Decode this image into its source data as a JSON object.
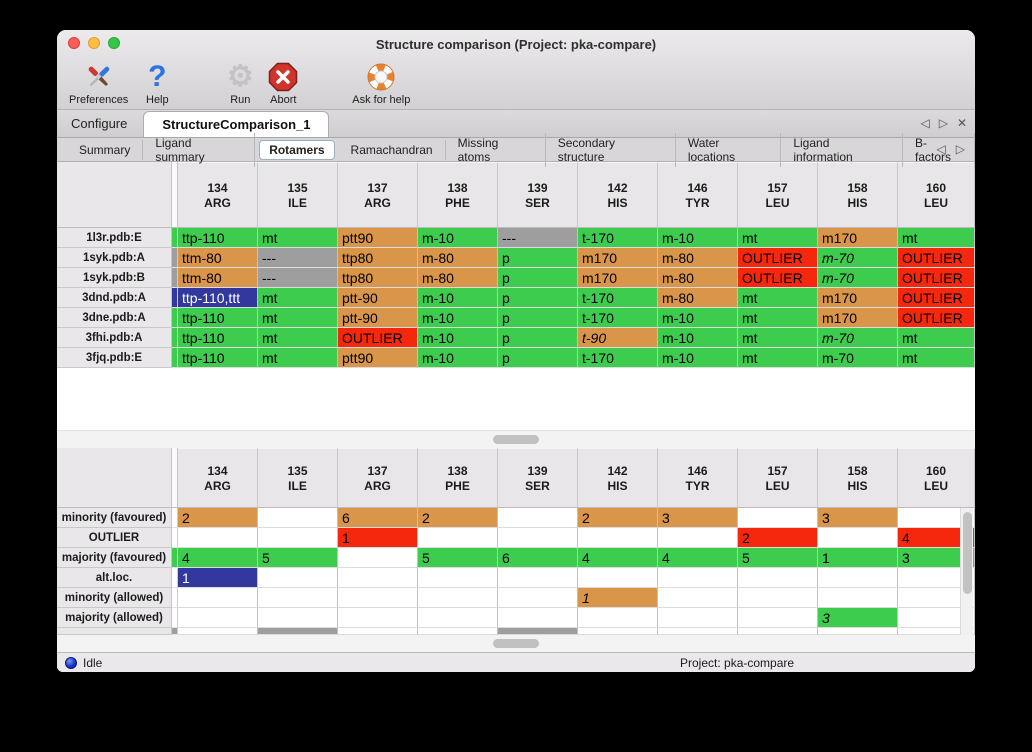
{
  "window": {
    "title": "Structure comparison (Project: pka-compare)"
  },
  "traffic_lights": [
    "close",
    "minimize",
    "zoom"
  ],
  "toolbar": {
    "items": [
      {
        "label": "Preferences",
        "icon": "preferences-tools-icon"
      },
      {
        "label": "Help",
        "icon": "help-question-icon"
      },
      {
        "label": "Run",
        "icon": "run-gear-icon",
        "disabled": true
      },
      {
        "label": "Abort",
        "icon": "abort-stop-icon"
      },
      {
        "label": "Ask for help",
        "icon": "lifebuoy-icon"
      }
    ]
  },
  "tabs": {
    "main": [
      {
        "label": "Configure",
        "active": false
      },
      {
        "label": "StructureComparison_1",
        "active": true
      }
    ],
    "sub": [
      "Summary",
      "Ligand summary",
      "Rotamers",
      "Ramachandran",
      "Missing atoms",
      "Secondary structure",
      "Water locations",
      "Ligand information",
      "B-factors"
    ],
    "active_sub": "Rotamers",
    "controls": {
      "prev": "◁",
      "next": "▷",
      "close": "✕"
    }
  },
  "columns": [
    {
      "num": "134",
      "res": "ARG"
    },
    {
      "num": "135",
      "res": "ILE"
    },
    {
      "num": "137",
      "res": "ARG"
    },
    {
      "num": "138",
      "res": "PHE"
    },
    {
      "num": "139",
      "res": "SER"
    },
    {
      "num": "142",
      "res": "HIS"
    },
    {
      "num": "146",
      "res": "TYR"
    },
    {
      "num": "157",
      "res": "LEU"
    },
    {
      "num": "158",
      "res": "HIS"
    },
    {
      "num": "160",
      "res": "LEU"
    }
  ],
  "colors": {
    "favoured": "#3dcc4e",
    "minority": "#d9964a",
    "missing": "#9e9e9e",
    "outlier": "#f5270d",
    "selection": "#32389e"
  },
  "top_table": {
    "rows": [
      {
        "label": "1l3r.pdb:E",
        "strip": "green",
        "cells": [
          {
            "text": "ttp-110",
            "color": "green"
          },
          {
            "text": "mt",
            "color": "green"
          },
          {
            "text": "ptt90",
            "color": "orange"
          },
          {
            "text": "m-10",
            "color": "green"
          },
          {
            "text": "---",
            "color": "gray"
          },
          {
            "text": "t-170",
            "color": "green"
          },
          {
            "text": "m-10",
            "color": "green"
          },
          {
            "text": "mt",
            "color": "green"
          },
          {
            "text": "m170",
            "color": "orange"
          },
          {
            "text": "mt",
            "color": "green"
          }
        ]
      },
      {
        "label": "1syk.pdb:A",
        "strip": "gray",
        "cells": [
          {
            "text": "ttm-80",
            "color": "orange"
          },
          {
            "text": "---",
            "color": "gray"
          },
          {
            "text": "ttp80",
            "color": "orange"
          },
          {
            "text": "m-80",
            "color": "orange"
          },
          {
            "text": "p",
            "color": "green"
          },
          {
            "text": "m170",
            "color": "orange"
          },
          {
            "text": "m-80",
            "color": "orange"
          },
          {
            "text": "OUTLIER",
            "color": "red"
          },
          {
            "text": "m-70",
            "color": "green",
            "italic": true
          },
          {
            "text": "OUTLIER",
            "color": "red"
          }
        ]
      },
      {
        "label": "1syk.pdb:B",
        "strip": "gray",
        "cells": [
          {
            "text": "ttm-80",
            "color": "orange"
          },
          {
            "text": "---",
            "color": "gray"
          },
          {
            "text": "ttp80",
            "color": "orange"
          },
          {
            "text": "m-80",
            "color": "orange"
          },
          {
            "text": "p",
            "color": "green"
          },
          {
            "text": "m170",
            "color": "orange"
          },
          {
            "text": "m-80",
            "color": "orange"
          },
          {
            "text": "OUTLIER",
            "color": "red"
          },
          {
            "text": "m-70",
            "color": "green",
            "italic": true
          },
          {
            "text": "OUTLIER",
            "color": "red"
          }
        ]
      },
      {
        "label": "3dnd.pdb:A",
        "strip": "blue",
        "cells": [
          {
            "text": "ttp-110,ttt",
            "color": "blue",
            "selected": true
          },
          {
            "text": "mt",
            "color": "green"
          },
          {
            "text": "ptt-90",
            "color": "orange"
          },
          {
            "text": "m-10",
            "color": "green"
          },
          {
            "text": "p",
            "color": "green"
          },
          {
            "text": "t-170",
            "color": "green"
          },
          {
            "text": "m-80",
            "color": "orange"
          },
          {
            "text": "mt",
            "color": "green"
          },
          {
            "text": "m170",
            "color": "orange"
          },
          {
            "text": "OUTLIER",
            "color": "red"
          }
        ]
      },
      {
        "label": "3dne.pdb:A",
        "strip": "green",
        "cells": [
          {
            "text": "ttp-110",
            "color": "green"
          },
          {
            "text": "mt",
            "color": "green"
          },
          {
            "text": "ptt-90",
            "color": "orange"
          },
          {
            "text": "m-10",
            "color": "green"
          },
          {
            "text": "p",
            "color": "green"
          },
          {
            "text": "t-170",
            "color": "green"
          },
          {
            "text": "m-10",
            "color": "green"
          },
          {
            "text": "mt",
            "color": "green"
          },
          {
            "text": "m170",
            "color": "orange"
          },
          {
            "text": "OUTLIER",
            "color": "red"
          }
        ]
      },
      {
        "label": "3fhi.pdb:A",
        "strip": "green",
        "cells": [
          {
            "text": "ttp-110",
            "color": "green"
          },
          {
            "text": "mt",
            "color": "green"
          },
          {
            "text": "OUTLIER",
            "color": "red"
          },
          {
            "text": "m-10",
            "color": "green"
          },
          {
            "text": "p",
            "color": "green"
          },
          {
            "text": "t-90",
            "color": "orange",
            "italic": true
          },
          {
            "text": "m-10",
            "color": "green"
          },
          {
            "text": "mt",
            "color": "green"
          },
          {
            "text": "m-70",
            "color": "green",
            "italic": true
          },
          {
            "text": "mt",
            "color": "green"
          }
        ]
      },
      {
        "label": "3fjq.pdb:E",
        "strip": "green",
        "cells": [
          {
            "text": "ttp-110",
            "color": "green"
          },
          {
            "text": "mt",
            "color": "green"
          },
          {
            "text": "ptt90",
            "color": "orange"
          },
          {
            "text": "m-10",
            "color": "green"
          },
          {
            "text": "p",
            "color": "green"
          },
          {
            "text": "t-170",
            "color": "green"
          },
          {
            "text": "m-10",
            "color": "green"
          },
          {
            "text": "mt",
            "color": "green"
          },
          {
            "text": "m-70",
            "color": "green"
          },
          {
            "text": "mt",
            "color": "green"
          }
        ]
      }
    ]
  },
  "bottom_table": {
    "rows": [
      {
        "label": "minority (favoured)",
        "strip": "none",
        "cells": [
          {
            "text": "2",
            "color": "orange"
          },
          {
            "text": "",
            "color": "none"
          },
          {
            "text": "6",
            "color": "orange"
          },
          {
            "text": "2",
            "color": "orange"
          },
          {
            "text": "",
            "color": "none"
          },
          {
            "text": "2",
            "color": "orange"
          },
          {
            "text": "3",
            "color": "orange"
          },
          {
            "text": "",
            "color": "none"
          },
          {
            "text": "3",
            "color": "orange"
          },
          {
            "text": "",
            "color": "none"
          }
        ]
      },
      {
        "label": "OUTLIER",
        "strip": "none",
        "cells": [
          {
            "text": "",
            "color": "none"
          },
          {
            "text": "",
            "color": "none"
          },
          {
            "text": "1",
            "color": "red"
          },
          {
            "text": "",
            "color": "none"
          },
          {
            "text": "",
            "color": "none"
          },
          {
            "text": "",
            "color": "none"
          },
          {
            "text": "",
            "color": "none"
          },
          {
            "text": "2",
            "color": "red"
          },
          {
            "text": "",
            "color": "none"
          },
          {
            "text": "4",
            "color": "red"
          }
        ]
      },
      {
        "label": "majority (favoured)",
        "strip": "green",
        "cells": [
          {
            "text": "4",
            "color": "green"
          },
          {
            "text": "5",
            "color": "green"
          },
          {
            "text": "",
            "color": "none"
          },
          {
            "text": "5",
            "color": "green"
          },
          {
            "text": "6",
            "color": "green"
          },
          {
            "text": "4",
            "color": "green"
          },
          {
            "text": "4",
            "color": "green"
          },
          {
            "text": "5",
            "color": "green"
          },
          {
            "text": "1",
            "color": "green"
          },
          {
            "text": "3",
            "color": "green"
          }
        ]
      },
      {
        "label": "alt.loc.",
        "strip": "none",
        "cells": [
          {
            "text": "1",
            "color": "blue",
            "selected": true
          },
          {
            "text": "",
            "color": "none"
          },
          {
            "text": "",
            "color": "none"
          },
          {
            "text": "",
            "color": "none"
          },
          {
            "text": "",
            "color": "none"
          },
          {
            "text": "",
            "color": "none"
          },
          {
            "text": "",
            "color": "none"
          },
          {
            "text": "",
            "color": "none"
          },
          {
            "text": "",
            "color": "none"
          },
          {
            "text": "",
            "color": "none"
          }
        ]
      },
      {
        "label": "minority (allowed)",
        "strip": "none",
        "cells": [
          {
            "text": "",
            "color": "none"
          },
          {
            "text": "",
            "color": "none"
          },
          {
            "text": "",
            "color": "none"
          },
          {
            "text": "",
            "color": "none"
          },
          {
            "text": "",
            "color": "none"
          },
          {
            "text": "1",
            "color": "orange",
            "italic": true
          },
          {
            "text": "",
            "color": "none"
          },
          {
            "text": "",
            "color": "none"
          },
          {
            "text": "",
            "color": "none"
          },
          {
            "text": "",
            "color": "none"
          }
        ]
      },
      {
        "label": "majority (allowed)",
        "strip": "none",
        "cells": [
          {
            "text": "",
            "color": "none"
          },
          {
            "text": "",
            "color": "none"
          },
          {
            "text": "",
            "color": "none"
          },
          {
            "text": "",
            "color": "none"
          },
          {
            "text": "",
            "color": "none"
          },
          {
            "text": "",
            "color": "none"
          },
          {
            "text": "",
            "color": "none"
          },
          {
            "text": "",
            "color": "none"
          },
          {
            "text": "3",
            "color": "green",
            "italic": true
          },
          {
            "text": "",
            "color": "none"
          }
        ]
      }
    ],
    "partial_row": {
      "strip": "gray",
      "cells": [
        "none",
        "gray",
        "none",
        "none",
        "gray",
        "none",
        "none",
        "none",
        "none",
        "none"
      ]
    }
  },
  "statusbar": {
    "status_icon": "status-orb-icon",
    "status": "Idle",
    "project": "Project: pka-compare"
  }
}
